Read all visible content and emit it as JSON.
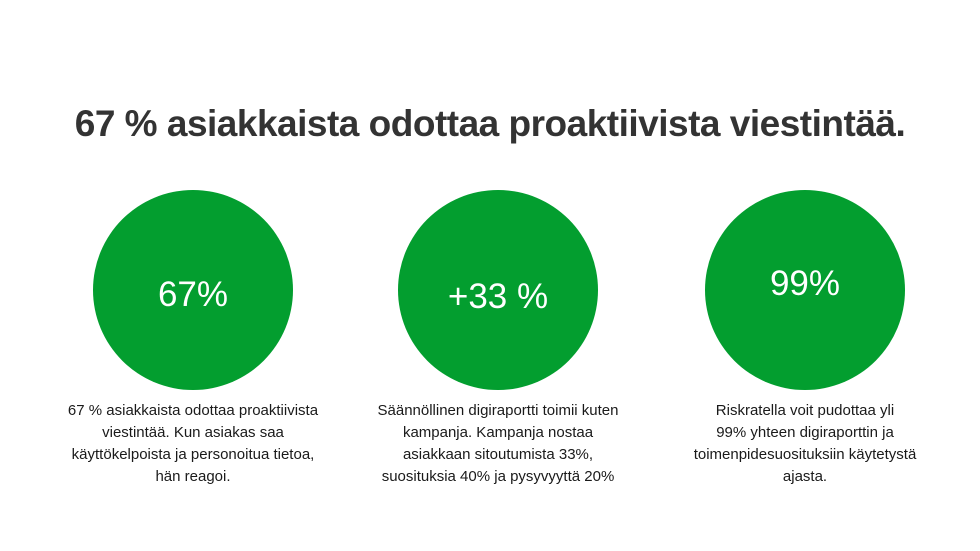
{
  "headline": "67 % asiakkaista odottaa proaktiivista viestintää.",
  "colors": {
    "circle": "#039e2f",
    "headline": "#333333",
    "background": "#ffffff"
  },
  "stats": [
    {
      "value": "67%",
      "description": [
        "67 % asiakkaista odottaa proaktiivista",
        "viestintää. Kun asiakas saa",
        "käyttökelpoista ja personoitua tietoa,",
        "hän reagoi."
      ]
    },
    {
      "value": "+33 %",
      "description": [
        "Säännöllinen digiraportti toimii kuten",
        "kampanja. Kampanja nostaa",
        "asiakkaan sitoutumista 33%,",
        "suosituksia 40% ja pysyvyyttä 20%"
      ]
    },
    {
      "value": "99%",
      "description": [
        "Riskratella voit pudottaa yli",
        "99% yhteen digiraporttin ja",
        "toimenpidesuosituksiin käytetystä",
        "ajasta."
      ]
    }
  ]
}
